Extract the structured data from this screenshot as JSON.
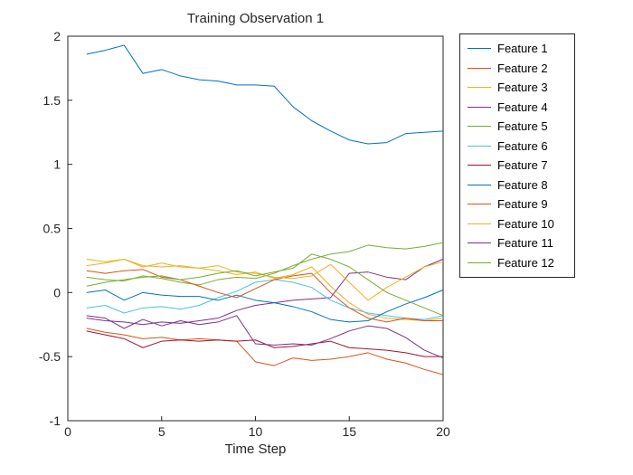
{
  "chart_data": {
    "type": "line",
    "title": "Training Observation 1",
    "xlabel": "Time Step",
    "ylabel": "",
    "xlim": [
      0,
      20
    ],
    "ylim": [
      -1,
      2
    ],
    "x_tick_values": [
      0,
      5,
      10,
      15,
      20
    ],
    "x_tick_labels": [
      "0",
      "5",
      "10",
      "15",
      "20"
    ],
    "y_tick_values": [
      -1,
      -0.5,
      0,
      0.5,
      1,
      1.5,
      2
    ],
    "y_tick_labels": [
      "-1",
      "-0.5",
      "0",
      "0.5",
      "1",
      "1.5",
      "2"
    ],
    "grid": false,
    "legend_position": "right-outside",
    "axis_color": "#262626",
    "x": [
      1,
      2,
      3,
      4,
      5,
      6,
      7,
      8,
      9,
      10,
      11,
      12,
      13,
      14,
      15,
      16,
      17,
      18,
      19,
      20
    ],
    "series": [
      {
        "name": "Feature 1",
        "color": "#0072BD",
        "values": [
          1.86,
          1.89,
          1.93,
          1.71,
          1.74,
          1.69,
          1.66,
          1.65,
          1.62,
          1.62,
          1.61,
          1.45,
          1.34,
          1.26,
          1.19,
          1.16,
          1.17,
          1.24,
          1.25,
          1.26
        ]
      },
      {
        "name": "Feature 2",
        "color": "#D95319",
        "values": [
          -0.28,
          -0.31,
          -0.33,
          -0.36,
          -0.35,
          -0.37,
          -0.36,
          -0.37,
          -0.38,
          -0.54,
          -0.57,
          -0.51,
          -0.53,
          -0.52,
          -0.5,
          -0.47,
          -0.52,
          -0.55,
          -0.6,
          -0.64
        ]
      },
      {
        "name": "Feature 3",
        "color": "#EDB120",
        "values": [
          0.26,
          0.24,
          0.26,
          0.21,
          0.2,
          0.21,
          0.19,
          0.17,
          0.14,
          0.16,
          0.11,
          0.14,
          0.2,
          0.05,
          -0.08,
          -0.17,
          -0.2,
          -0.21,
          -0.22,
          -0.2
        ]
      },
      {
        "name": "Feature 4",
        "color": "#7E2F8E",
        "values": [
          -0.2,
          -0.22,
          -0.23,
          -0.25,
          -0.23,
          -0.24,
          -0.22,
          -0.2,
          -0.14,
          -0.1,
          -0.08,
          -0.06,
          -0.05,
          -0.04,
          0.15,
          0.16,
          0.12,
          0.1,
          0.2,
          0.26
        ]
      },
      {
        "name": "Feature 5",
        "color": "#77AC30",
        "values": [
          0.12,
          0.1,
          0.09,
          0.13,
          0.11,
          0.08,
          0.06,
          0.1,
          0.12,
          0.11,
          0.15,
          0.21,
          0.26,
          0.3,
          0.32,
          0.37,
          0.35,
          0.34,
          0.36,
          0.39
        ]
      },
      {
        "name": "Feature 6",
        "color": "#4DBEEE",
        "values": [
          -0.12,
          -0.1,
          -0.16,
          -0.12,
          -0.11,
          -0.13,
          -0.1,
          -0.04,
          0.01,
          0.08,
          0.1,
          0.08,
          0.04,
          -0.06,
          -0.12,
          -0.16,
          -0.18,
          -0.2,
          -0.21,
          -0.18
        ]
      },
      {
        "name": "Feature 7",
        "color": "#A2142F",
        "values": [
          -0.3,
          -0.33,
          -0.36,
          -0.43,
          -0.38,
          -0.37,
          -0.38,
          -0.37,
          -0.38,
          -0.37,
          -0.43,
          -0.42,
          -0.4,
          -0.38,
          -0.43,
          -0.44,
          -0.45,
          -0.47,
          -0.5,
          -0.5
        ]
      },
      {
        "name": "Feature 8",
        "color": "#0072BD",
        "values": [
          0.0,
          0.02,
          -0.06,
          0.0,
          -0.02,
          -0.03,
          -0.03,
          -0.06,
          -0.02,
          -0.06,
          -0.08,
          -0.11,
          -0.15,
          -0.21,
          -0.23,
          -0.22,
          -0.15,
          -0.09,
          -0.04,
          0.02
        ]
      },
      {
        "name": "Feature 9",
        "color": "#D95319",
        "values": [
          0.17,
          0.15,
          0.17,
          0.18,
          0.12,
          0.1,
          0.05,
          0.0,
          -0.04,
          0.03,
          0.1,
          0.13,
          0.15,
          0.0,
          -0.12,
          -0.2,
          -0.23,
          -0.2,
          -0.22,
          -0.22
        ]
      },
      {
        "name": "Feature 10",
        "color": "#EDB120",
        "values": [
          0.21,
          0.23,
          0.26,
          0.2,
          0.23,
          0.2,
          0.19,
          0.21,
          0.16,
          0.15,
          0.12,
          0.11,
          0.13,
          0.22,
          0.08,
          -0.06,
          0.04,
          0.12,
          0.2,
          0.24
        ]
      },
      {
        "name": "Feature 11",
        "color": "#7E2F8E",
        "values": [
          -0.18,
          -0.2,
          -0.28,
          -0.21,
          -0.26,
          -0.22,
          -0.25,
          -0.23,
          -0.18,
          -0.4,
          -0.41,
          -0.4,
          -0.41,
          -0.36,
          -0.3,
          -0.26,
          -0.28,
          -0.35,
          -0.45,
          -0.51
        ]
      },
      {
        "name": "Feature 12",
        "color": "#77AC30",
        "values": [
          0.05,
          0.08,
          0.1,
          0.12,
          0.13,
          0.1,
          0.12,
          0.15,
          0.17,
          0.13,
          0.16,
          0.19,
          0.3,
          0.26,
          0.2,
          0.1,
          0.0,
          -0.06,
          -0.12,
          -0.18
        ]
      }
    ]
  }
}
